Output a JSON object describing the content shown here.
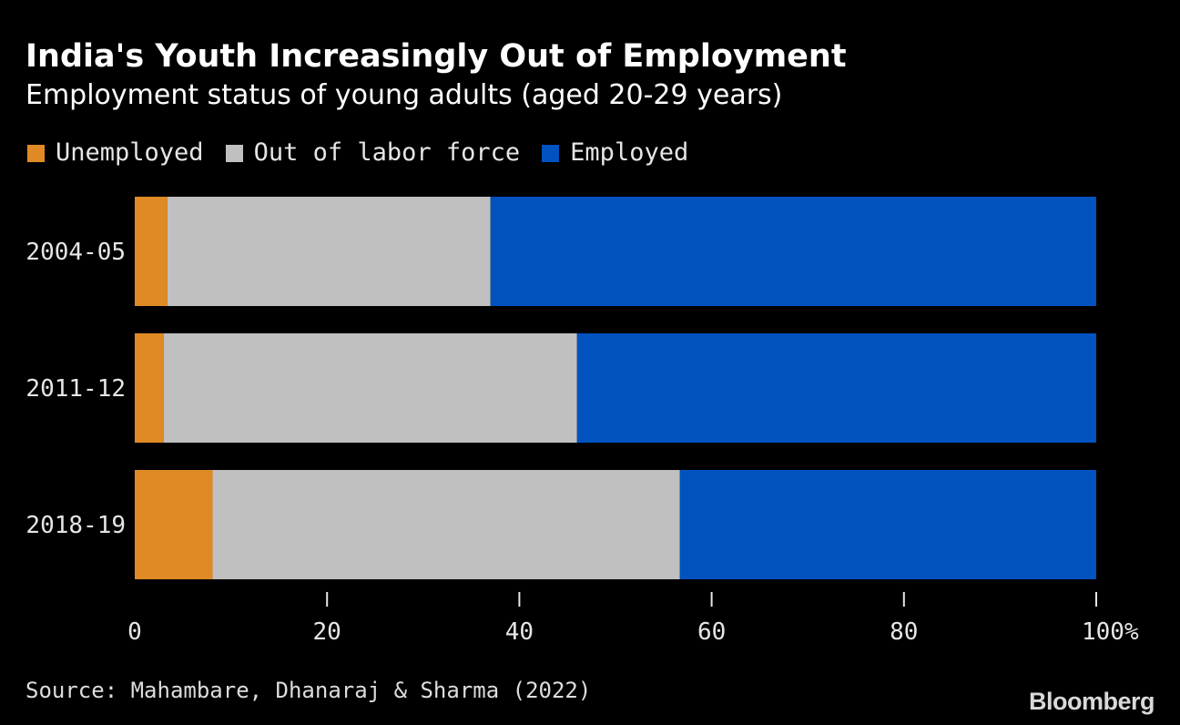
{
  "title": "India's Youth Increasingly Out of Employment",
  "subtitle": "Employment status of young adults (aged 20-29 years)",
  "source": "Source: Mahambare, Dhanaraj & Sharma (2022)",
  "brand": "Bloomberg",
  "colors": {
    "background": "#000000",
    "unemployed": "#e08a26",
    "out_of_labor_force": "#c0c0c0",
    "employed": "#0052bf"
  },
  "legend": [
    {
      "label": "Unemployed",
      "color": "#e08a26"
    },
    {
      "label": "Out of labor force",
      "color": "#c0c0c0"
    },
    {
      "label": "Employed",
      "color": "#0052bf"
    }
  ],
  "chart_data": {
    "type": "bar",
    "orientation": "horizontal",
    "stacked": true,
    "categories": [
      "2004-05",
      "2011-12",
      "2018-19"
    ],
    "series": [
      {
        "name": "Unemployed",
        "color": "#e08a26",
        "values": [
          3.4,
          3.0,
          8.1
        ]
      },
      {
        "name": "Out of labor force",
        "color": "#c0c0c0",
        "values": [
          33.6,
          43.0,
          48.6
        ]
      },
      {
        "name": "Employed",
        "color": "#0052bf",
        "values": [
          63.0,
          54.0,
          43.3
        ]
      }
    ],
    "xlim": [
      0,
      100
    ],
    "xticks": [
      0,
      20,
      40,
      60,
      80,
      100
    ],
    "xtick_labels": [
      "0",
      "20",
      "40",
      "60",
      "80",
      "100%"
    ],
    "grid": false,
    "legend_position": "top-left"
  }
}
